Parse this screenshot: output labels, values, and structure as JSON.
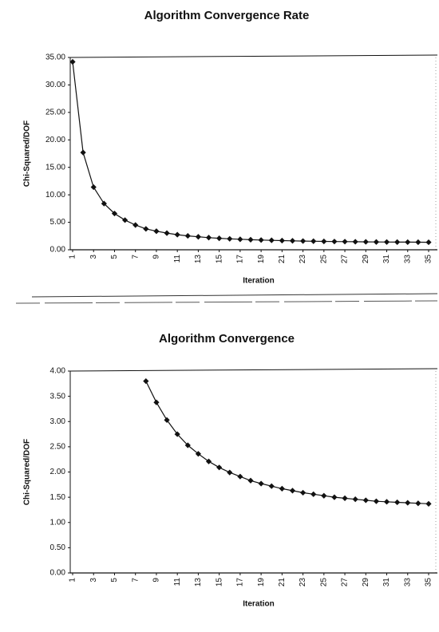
{
  "chart_data": [
    {
      "type": "line",
      "title": "Algorithm Convergence Rate",
      "x_label": "Iteration",
      "y_label": "Chi-Squared/DOF",
      "x": [
        1,
        2,
        3,
        4,
        5,
        6,
        7,
        8,
        9,
        10,
        11,
        12,
        13,
        14,
        15,
        16,
        17,
        18,
        19,
        20,
        21,
        22,
        23,
        24,
        25,
        26,
        27,
        28,
        29,
        30,
        31,
        32,
        33,
        34,
        35
      ],
      "series": [
        {
          "color": "#111111",
          "values": [
            34.2,
            17.7,
            11.4,
            8.4,
            6.6,
            5.4,
            4.5,
            3.8,
            3.38,
            3.03,
            2.75,
            2.53,
            2.36,
            2.21,
            2.09,
            1.99,
            1.91,
            1.83,
            1.77,
            1.72,
            1.67,
            1.63,
            1.59,
            1.56,
            1.53,
            1.5,
            1.48,
            1.46,
            1.44,
            1.42,
            1.41,
            1.4,
            1.39,
            1.38,
            1.37
          ]
        }
      ],
      "xlim": [
        1,
        35
      ],
      "xticks": [
        1,
        3,
        5,
        7,
        9,
        11,
        13,
        15,
        17,
        19,
        21,
        23,
        25,
        27,
        29,
        31,
        33,
        35
      ],
      "ylim": [
        0,
        35
      ],
      "yticks": [
        {
          "value": 0,
          "label": "0.00"
        },
        {
          "value": 5,
          "label": "5.00"
        },
        {
          "value": 10,
          "label": "10.00"
        },
        {
          "value": 15,
          "label": "15.00"
        },
        {
          "value": 20,
          "label": "20.00"
        },
        {
          "value": 25,
          "label": "25.00"
        },
        {
          "value": 30,
          "label": "30.00"
        },
        {
          "value": 35,
          "label": "35.00"
        }
      ]
    },
    {
      "type": "line",
      "title": "Algorithm Convergence",
      "x_label": "Iteration",
      "y_label": "Chi-Squared/DOF",
      "x": [
        1,
        2,
        3,
        4,
        5,
        6,
        7,
        8,
        9,
        10,
        11,
        12,
        13,
        14,
        15,
        16,
        17,
        18,
        19,
        20,
        21,
        22,
        23,
        24,
        25,
        26,
        27,
        28,
        29,
        30,
        31,
        32,
        33,
        34,
        35
      ],
      "series": [
        {
          "color": "#111111",
          "values": [
            null,
            null,
            null,
            null,
            null,
            null,
            null,
            3.8,
            3.38,
            3.03,
            2.75,
            2.53,
            2.36,
            2.21,
            2.09,
            1.99,
            1.91,
            1.83,
            1.77,
            1.72,
            1.67,
            1.63,
            1.59,
            1.56,
            1.53,
            1.5,
            1.48,
            1.46,
            1.44,
            1.42,
            1.41,
            1.4,
            1.39,
            1.38,
            1.37
          ]
        }
      ],
      "xlim": [
        1,
        35
      ],
      "xticks": [
        1,
        3,
        5,
        7,
        9,
        11,
        13,
        15,
        17,
        19,
        21,
        23,
        25,
        27,
        29,
        31,
        33,
        35
      ],
      "ylim": [
        0,
        4
      ],
      "yticks": [
        {
          "value": 0,
          "label": "0.00"
        },
        {
          "value": 0.5,
          "label": "0.50"
        },
        {
          "value": 1,
          "label": "1.00"
        },
        {
          "value": 1.5,
          "label": "1.50"
        },
        {
          "value": 2,
          "label": "2.00"
        },
        {
          "value": 2.5,
          "label": "2.50"
        },
        {
          "value": 3,
          "label": "3.00"
        },
        {
          "value": 3.5,
          "label": "3.50"
        },
        {
          "value": 4,
          "label": "4.00"
        }
      ]
    }
  ]
}
